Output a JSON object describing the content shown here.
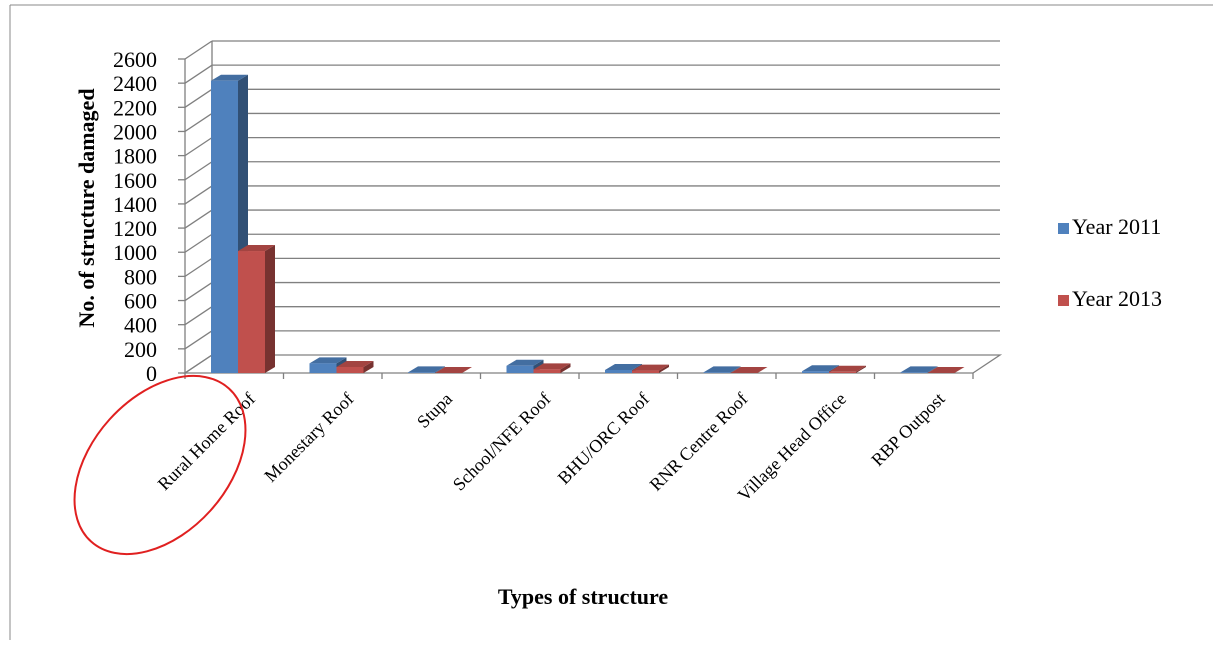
{
  "chart_data": {
    "type": "bar",
    "title": "",
    "xlabel": "Types of structure",
    "ylabel": "No. of structure damaged",
    "categories": [
      "Rural Home Roof",
      "Monestary Roof",
      "Stupa",
      "School/NFE Roof",
      "BHU/ORC Roof",
      "RNR Centre Roof",
      "Village Head Office",
      "RBP Outpost"
    ],
    "series": [
      {
        "name": "Year 2011",
        "values": [
          2420,
          80,
          5,
          60,
          25,
          5,
          15,
          5
        ],
        "color": "#4F81BD"
      },
      {
        "name": "Year 2013",
        "values": [
          1010,
          50,
          0,
          30,
          20,
          0,
          10,
          0
        ],
        "color": "#C0504D"
      }
    ],
    "ylim": [
      0,
      2600
    ],
    "yticks": [
      0,
      200,
      400,
      600,
      800,
      1000,
      1200,
      1400,
      1600,
      1800,
      2000,
      2200,
      2400,
      2600
    ],
    "grid": true,
    "legend_position": "right",
    "highlight": {
      "category": "Rural Home Roof",
      "shape": "ellipse",
      "color": "#E02020"
    }
  }
}
